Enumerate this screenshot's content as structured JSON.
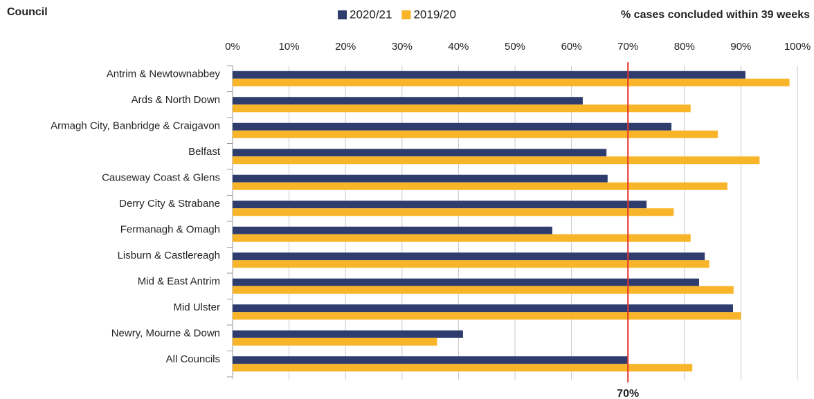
{
  "chart_data": {
    "type": "bar",
    "orientation": "horizontal",
    "title": "% cases concluded within 39 weeks",
    "y_axis_label": "Council",
    "categories": [
      "Antrim & Newtownabbey",
      "Ards & North Down",
      "Armagh City, Banbridge & Craigavon",
      "Belfast",
      "Causeway Coast & Glens",
      "Derry City & Strabane",
      "Fermanagh & Omagh",
      "Lisburn & Castlereagh",
      "Mid & East Antrim",
      "Mid Ulster",
      "Newry, Mourne & Down",
      "All Councils"
    ],
    "series": [
      {
        "name": "2020/21",
        "color": "#2e3d6e",
        "values": [
          90.8,
          62.0,
          77.7,
          66.2,
          66.4,
          73.3,
          56.6,
          83.6,
          82.6,
          88.6,
          40.8,
          69.9
        ]
      },
      {
        "name": "2019/20",
        "color": "#f9b52a",
        "values": [
          98.6,
          81.1,
          85.9,
          93.3,
          87.6,
          78.1,
          81.1,
          84.4,
          88.7,
          90.0,
          36.2,
          81.4
        ]
      }
    ],
    "xlim": [
      0,
      100
    ],
    "xticks": [
      {
        "value": 0,
        "label": "0%"
      },
      {
        "value": 10,
        "label": "10%"
      },
      {
        "value": 20,
        "label": "20%"
      },
      {
        "value": 30,
        "label": "30%"
      },
      {
        "value": 40,
        "label": "40%"
      },
      {
        "value": 50,
        "label": "50%"
      },
      {
        "value": 60,
        "label": "60%"
      },
      {
        "value": 70,
        "label": "70%"
      },
      {
        "value": 80,
        "label": "80%"
      },
      {
        "value": 90,
        "label": "90%"
      },
      {
        "value": 100,
        "label": "100%"
      }
    ],
    "grid": true,
    "legend": "top",
    "reference_line": {
      "value": 70,
      "label": "70%",
      "color": "#e3342f"
    }
  }
}
